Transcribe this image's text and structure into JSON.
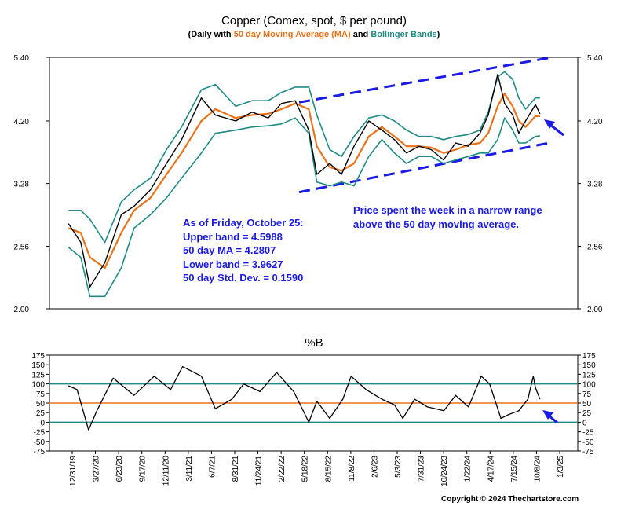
{
  "title": "Copper (Comex, spot, $ per pound)",
  "subtitle": {
    "prefix": "(Daily with ",
    "ma_label": "50 day Moving Average (MA)",
    "mid": " and ",
    "bb_label": "Bollinger Bands",
    "suffix": ")"
  },
  "colors": {
    "price": "#000000",
    "ma": "#e8731a",
    "bands": "#1f8a86",
    "annotation": "#1a1ae6",
    "pb_line_100": "#1f8a86",
    "pb_line_50": "#e8731a",
    "pb_line_0": "#1f8a86"
  },
  "annotations": {
    "stats_lines": [
      "As of Friday, October 25:",
      "Upper band = 4.5988",
      "50 day MA = 4.2807",
      "Lower band = 3.9627",
      "50 day Std. Dev. = 0.1590"
    ],
    "comment_lines": [
      "Price spent the week in a narrow range",
      "above the 50 day moving average."
    ]
  },
  "copyright": "Copyright © 2024 Thechartstore.com",
  "chart_data": [
    {
      "type": "line",
      "title": "Copper (Comex, spot, $ per pound)",
      "ylabel": "",
      "ylim": [
        2.0,
        5.4
      ],
      "log_scale": true,
      "grid": false,
      "y_ticks": [
        "2.00",
        "2.56",
        "3.28",
        "4.20",
        "5.40"
      ],
      "dates": [
        "2019-12-31",
        "2020-02-15",
        "2020-03-20",
        "2020-05-15",
        "2020-07-15",
        "2020-09-01",
        "2020-11-01",
        "2020-12-31",
        "2021-02-25",
        "2021-05-10",
        "2021-07-01",
        "2021-09-15",
        "2021-11-15",
        "2022-01-15",
        "2022-03-05",
        "2022-04-25",
        "2022-06-15",
        "2022-07-15",
        "2022-09-01",
        "2022-10-15",
        "2022-12-01",
        "2023-01-25",
        "2023-03-15",
        "2023-05-01",
        "2023-06-15",
        "2023-07-31",
        "2023-09-15",
        "2023-10-31",
        "2023-12-15",
        "2024-01-31",
        "2024-03-15",
        "2024-04-15",
        "2024-05-20",
        "2024-06-15",
        "2024-07-15",
        "2024-08-07",
        "2024-09-01",
        "2024-10-08",
        "2024-10-25"
      ],
      "series": [
        {
          "name": "Copper",
          "values": [
            2.8,
            2.6,
            2.18,
            2.4,
            2.9,
            3.0,
            3.2,
            3.55,
            3.9,
            4.6,
            4.3,
            4.2,
            4.35,
            4.25,
            4.5,
            4.55,
            4.05,
            3.4,
            3.55,
            3.4,
            3.8,
            4.2,
            4.05,
            3.9,
            3.7,
            3.8,
            3.75,
            3.6,
            3.85,
            3.8,
            4.0,
            4.3,
            5.05,
            4.5,
            4.3,
            4.0,
            4.2,
            4.48,
            4.32
          ]
        },
        {
          "name": "50 day Moving Average (MA)",
          "values": [
            2.75,
            2.7,
            2.45,
            2.35,
            2.7,
            2.95,
            3.1,
            3.4,
            3.7,
            4.2,
            4.4,
            4.25,
            4.3,
            4.32,
            4.4,
            4.5,
            4.4,
            3.8,
            3.5,
            3.45,
            3.55,
            3.95,
            4.1,
            3.95,
            3.8,
            3.8,
            3.78,
            3.7,
            3.75,
            3.82,
            3.85,
            4.0,
            4.45,
            4.68,
            4.45,
            4.2,
            4.1,
            4.28,
            4.28
          ]
        },
        {
          "name": "Bollinger Bands (upper)",
          "values": [
            2.95,
            2.95,
            2.85,
            2.6,
            3.05,
            3.2,
            3.35,
            3.75,
            4.1,
            4.75,
            4.85,
            4.45,
            4.55,
            4.55,
            4.7,
            4.8,
            4.8,
            4.3,
            3.75,
            3.65,
            3.95,
            4.25,
            4.3,
            4.2,
            4.05,
            3.95,
            3.95,
            3.9,
            3.95,
            3.98,
            4.05,
            4.35,
            5.0,
            5.1,
            4.95,
            4.6,
            4.4,
            4.6,
            4.6
          ]
        },
        {
          "name": "Bollinger Bands (lower)",
          "values": [
            2.55,
            2.45,
            2.1,
            2.1,
            2.35,
            2.75,
            2.9,
            3.1,
            3.35,
            3.7,
            4.0,
            4.05,
            4.1,
            4.12,
            4.15,
            4.25,
            4.0,
            3.3,
            3.25,
            3.3,
            3.25,
            3.65,
            3.9,
            3.7,
            3.55,
            3.65,
            3.65,
            3.55,
            3.6,
            3.65,
            3.7,
            3.7,
            3.9,
            4.25,
            4.05,
            3.85,
            3.85,
            3.95,
            3.96
          ]
        }
      ],
      "channel_lines": [
        {
          "x": [
            "2022-05-10",
            "2024-12-10"
          ],
          "y": [
            3.17,
            3.86
          ]
        },
        {
          "x": [
            "2022-05-10",
            "2024-12-10"
          ],
          "y": [
            4.52,
            5.4
          ]
        }
      ]
    },
    {
      "type": "line",
      "title": "%B",
      "ylim": [
        -75,
        175
      ],
      "grid": false,
      "y_ticks": [
        "175",
        "150",
        "125",
        "100",
        "75",
        "50",
        "25",
        "0",
        "-25",
        "-50",
        "-75"
      ],
      "x_tick_labels": [
        "12/31/19",
        "3/27/20",
        "6/23/20",
        "9/17/20",
        "12/11/20",
        "3/11/21",
        "6/7/21",
        "8/31/21",
        "11/24/21",
        "2/22/22",
        "5/18/22",
        "8/15/22",
        "11/8/22",
        "2/6/23",
        "5/3/23",
        "7/31/23",
        "10/24/23",
        "1/22/24",
        "4/17/24",
        "7/15/24",
        "10/8/24",
        "1/3/25"
      ],
      "reference_lines": [
        100,
        50,
        0
      ],
      "dates": [
        "2019-12-31",
        "2020-02-01",
        "2020-03-15",
        "2020-04-15",
        "2020-06-15",
        "2020-09-01",
        "2020-11-15",
        "2021-01-15",
        "2021-03-01",
        "2021-05-10",
        "2021-07-01",
        "2021-09-01",
        "2021-10-15",
        "2021-12-15",
        "2022-02-15",
        "2022-04-20",
        "2022-06-15",
        "2022-07-15",
        "2022-09-01",
        "2022-10-20",
        "2022-11-20",
        "2023-01-15",
        "2023-03-15",
        "2023-05-01",
        "2023-06-01",
        "2023-07-15",
        "2023-09-01",
        "2023-11-01",
        "2023-12-15",
        "2024-02-01",
        "2024-03-20",
        "2024-04-20",
        "2024-06-01",
        "2024-06-30",
        "2024-08-07",
        "2024-09-10",
        "2024-09-30",
        "2024-10-08",
        "2024-10-25"
      ],
      "series": [
        {
          "name": "%B",
          "values": [
            95,
            85,
            -20,
            30,
            115,
            70,
            120,
            85,
            145,
            120,
            35,
            60,
            100,
            80,
            130,
            80,
            0,
            55,
            10,
            60,
            120,
            85,
            60,
            45,
            10,
            60,
            40,
            30,
            70,
            40,
            120,
            100,
            10,
            20,
            30,
            60,
            120,
            90,
            60
          ]
        }
      ]
    }
  ]
}
